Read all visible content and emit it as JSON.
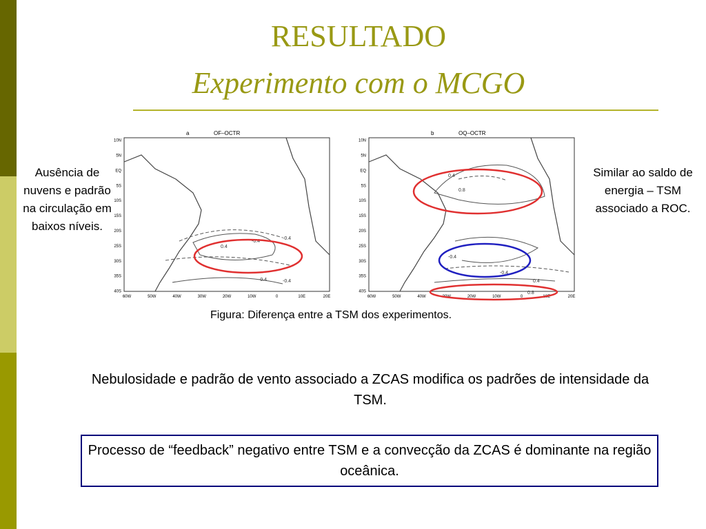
{
  "header": {
    "title": "RESULTADO",
    "subtitle": "Experimento com o MCGO"
  },
  "left_note": "Ausência de nuvens e padrão na circulação em baixos níveis.",
  "right_note": "Similar ao saldo de energia – TSM associado a ROC.",
  "map_axes": {
    "lat_labels": [
      "10N",
      "5N",
      "EQ",
      "5S",
      "10S",
      "15S",
      "20S",
      "25S",
      "30S",
      "35S",
      "40S"
    ],
    "lon_labels": [
      "60W",
      "50W",
      "40W",
      "30W",
      "20W",
      "10W",
      "0",
      "10E",
      "20E"
    ]
  },
  "figures": [
    {
      "panel": "a",
      "title": "OF–OCTR",
      "contour_labels": [
        "-0.4",
        "0.4",
        "-0.4",
        "-0.4",
        "-0.4"
      ]
    },
    {
      "panel": "b",
      "title": "OQ–OCTR",
      "contour_labels": [
        "0.4",
        "0.8",
        "-0.4",
        "-0.4",
        "0.4",
        "0.8"
      ]
    }
  ],
  "caption": "Figura: Diferença entre a TSM dos experimentos.",
  "body": "Nebulosidade e padrão de vento associado a ZCAS modifica os padrões de intensidade da TSM.",
  "boxed_text": "Processo de “feedback” negativo entre TSM e a convecção da ZCAS é dominante na região oceânica."
}
